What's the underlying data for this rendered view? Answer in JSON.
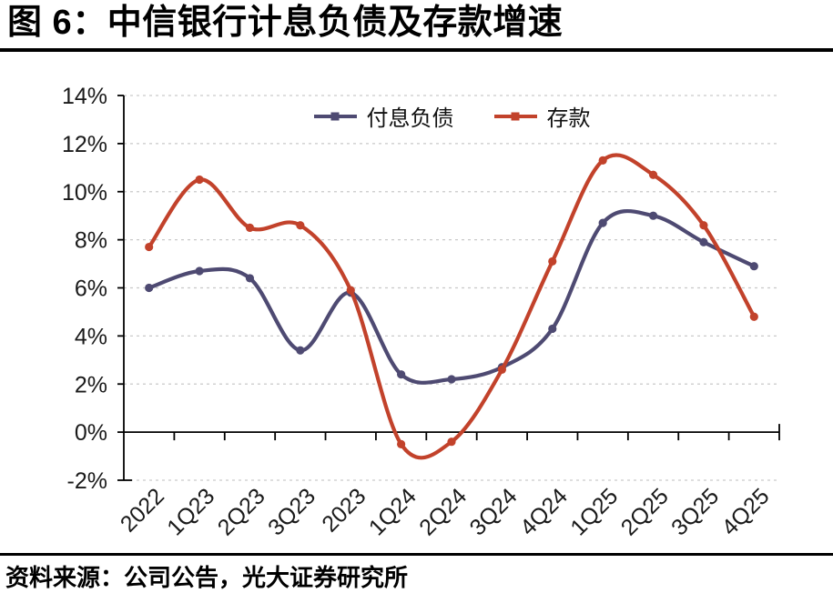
{
  "title": "图 6：中信银行计息负债及存款增速",
  "source_note": "资料来源：公司公告，光大证券研究所",
  "chart_data": {
    "type": "line",
    "title": "图 6：中信银行计息负债及存款增速",
    "categories": [
      "2022",
      "1Q23",
      "2Q23",
      "3Q23",
      "2023",
      "1Q24",
      "2Q24",
      "3Q24",
      "4Q24",
      "1Q25",
      "2Q25",
      "3Q25",
      "4Q25"
    ],
    "series": [
      {
        "name": "付息负债",
        "color": "#4E4A72",
        "values": [
          6.0,
          6.7,
          6.4,
          3.4,
          5.8,
          2.4,
          2.2,
          2.7,
          4.3,
          8.7,
          9.0,
          7.9,
          6.9
        ]
      },
      {
        "name": "存款",
        "color": "#C2422B",
        "values": [
          7.7,
          10.5,
          8.5,
          8.6,
          5.9,
          -0.5,
          -0.4,
          2.6,
          7.1,
          11.3,
          10.7,
          8.6,
          4.8
        ]
      }
    ],
    "ylim": [
      -2,
      14
    ],
    "ytick_step": 2,
    "ytick_suffix": "%",
    "grid": true,
    "gridline_color": "#C9C9C9",
    "axis_color": "#000000",
    "label_color": "#1A1A1A",
    "legend_position": "top-center",
    "smooth": true,
    "markers": true,
    "xlabel_rotation": -45
  }
}
